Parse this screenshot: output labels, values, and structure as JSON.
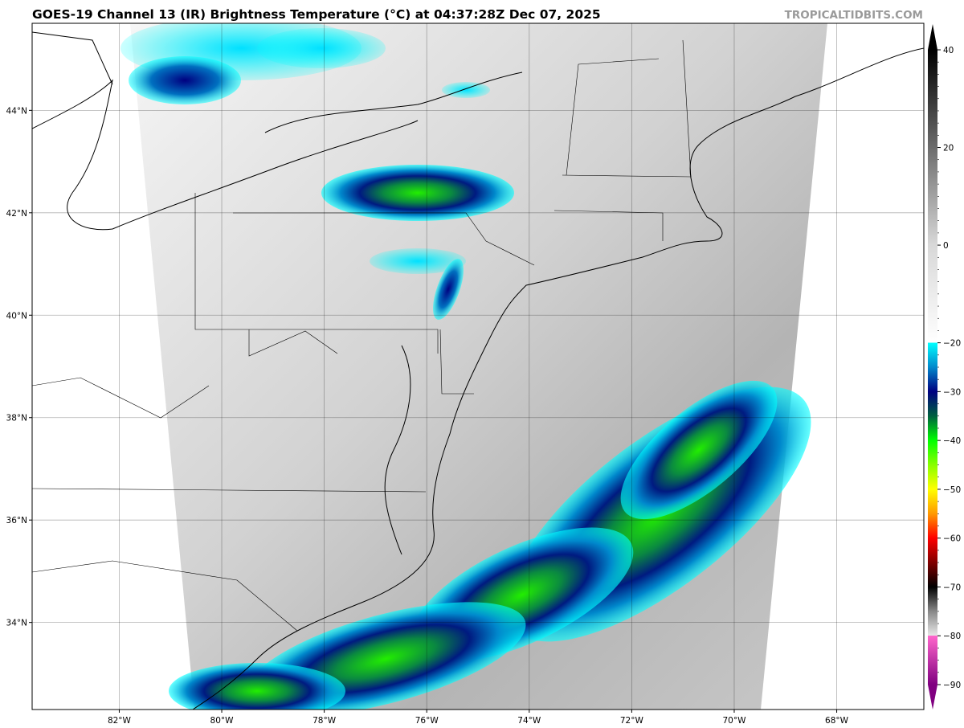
{
  "title": "GOES-19 Channel 13 (IR) Brightness Temperature (°C) at 04:37:28Z Dec 07, 2025",
  "watermark": "TROPICALTIDBITS.COM",
  "map": {
    "lon_range": [
      -83.7,
      -66.3
    ],
    "lat_range": [
      32.3,
      45.7
    ],
    "lon_ticks": [
      {
        "v": -82,
        "label": "82°W"
      },
      {
        "v": -80,
        "label": "80°W"
      },
      {
        "v": -78,
        "label": "78°W"
      },
      {
        "v": -76,
        "label": "76°W"
      },
      {
        "v": -74,
        "label": "74°W"
      },
      {
        "v": -72,
        "label": "72°W"
      },
      {
        "v": -70,
        "label": "70°W"
      },
      {
        "v": -68,
        "label": "68°W"
      }
    ],
    "lat_ticks": [
      {
        "v": 44,
        "label": "44°N"
      },
      {
        "v": 42,
        "label": "42°N"
      },
      {
        "v": 40,
        "label": "40°N"
      },
      {
        "v": 38,
        "label": "38°N"
      },
      {
        "v": 36,
        "label": "36°N"
      },
      {
        "v": 34,
        "label": "34°N"
      }
    ]
  },
  "colorbar": {
    "range": [
      -90,
      40
    ],
    "ticks": [
      "40",
      "20",
      "0",
      "−20",
      "−30",
      "−40",
      "−50",
      "−60",
      "−70",
      "−80",
      "−90"
    ],
    "tick_values": [
      40,
      20,
      0,
      -20,
      -30,
      -40,
      -50,
      -60,
      -70,
      -80,
      -90
    ],
    "stops": [
      {
        "t": 40,
        "c": "#000000"
      },
      {
        "t": 0,
        "c": "#d8d8d8"
      },
      {
        "t": -20,
        "c": "#ffffff"
      },
      {
        "t": -20,
        "c": "#00ffff"
      },
      {
        "t": -25,
        "c": "#0088cc"
      },
      {
        "t": -30,
        "c": "#000080"
      },
      {
        "t": -35,
        "c": "#006040"
      },
      {
        "t": -40,
        "c": "#00ff00"
      },
      {
        "t": -45,
        "c": "#88ff00"
      },
      {
        "t": -50,
        "c": "#ffff00"
      },
      {
        "t": -55,
        "c": "#ff9900"
      },
      {
        "t": -60,
        "c": "#ff0000"
      },
      {
        "t": -65,
        "c": "#800000"
      },
      {
        "t": -70,
        "c": "#000000"
      },
      {
        "t": -75,
        "c": "#888888"
      },
      {
        "t": -80,
        "c": "#e8e8e8"
      },
      {
        "t": -80,
        "c": "#ff66cc"
      },
      {
        "t": -90,
        "c": "#800080"
      }
    ]
  }
}
